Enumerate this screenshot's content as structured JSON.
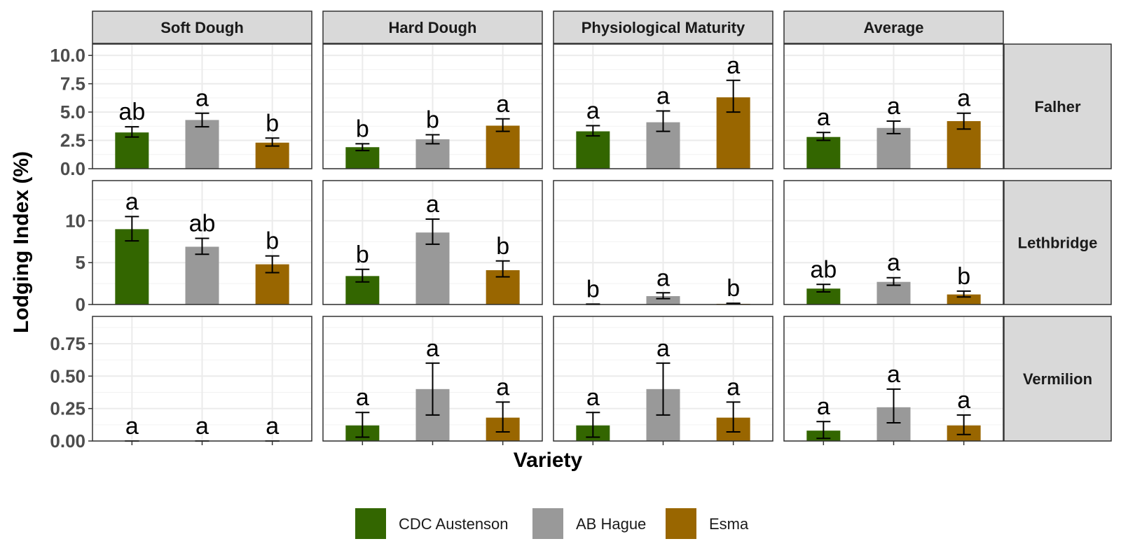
{
  "chart_data": {
    "type": "bar",
    "ylabel": "Lodging Index (%)",
    "xlabel": "Variety",
    "columns": [
      "Soft Dough",
      "Hard Dough",
      "Physiological Maturity",
      "Average"
    ],
    "rows": [
      {
        "name": "Falher",
        "ylim": [
          0,
          11
        ],
        "ticks": [
          0,
          2.5,
          5,
          7.5,
          10
        ],
        "tick_labels": [
          "0.0",
          "2.5",
          "5.0",
          "7.5",
          "10.0"
        ]
      },
      {
        "name": "Lethbridge",
        "ylim": [
          0,
          14.8
        ],
        "ticks": [
          0,
          5,
          10
        ],
        "tick_labels": [
          "0",
          "5",
          "10"
        ]
      },
      {
        "name": "Vermilion",
        "ylim": [
          0,
          0.96
        ],
        "ticks": [
          0,
          0.25,
          0.5,
          0.75
        ],
        "tick_labels": [
          "0.00",
          "0.25",
          "0.50",
          "0.75"
        ]
      }
    ],
    "series": [
      {
        "name": "CDC Austenson",
        "color": "#336600"
      },
      {
        "name": "AB Hague",
        "color": "#999999"
      },
      {
        "name": "Esma",
        "color": "#996600"
      }
    ],
    "panels": [
      {
        "row": 0,
        "col": 0,
        "bars": [
          {
            "value": 3.2,
            "low": 2.8,
            "high": 3.7,
            "letter": "ab"
          },
          {
            "value": 4.3,
            "low": 3.7,
            "high": 4.9,
            "letter": "a"
          },
          {
            "value": 2.3,
            "low": 2.0,
            "high": 2.7,
            "letter": "b"
          }
        ]
      },
      {
        "row": 0,
        "col": 1,
        "bars": [
          {
            "value": 1.9,
            "low": 1.6,
            "high": 2.2,
            "letter": "b"
          },
          {
            "value": 2.6,
            "low": 2.2,
            "high": 3.0,
            "letter": "b"
          },
          {
            "value": 3.8,
            "low": 3.3,
            "high": 4.4,
            "letter": "a"
          }
        ]
      },
      {
        "row": 0,
        "col": 2,
        "bars": [
          {
            "value": 3.3,
            "low": 2.9,
            "high": 3.8,
            "letter": "a"
          },
          {
            "value": 4.1,
            "low": 3.3,
            "high": 5.1,
            "letter": "a"
          },
          {
            "value": 6.3,
            "low": 5.0,
            "high": 7.8,
            "letter": "a"
          }
        ]
      },
      {
        "row": 0,
        "col": 3,
        "bars": [
          {
            "value": 2.8,
            "low": 2.5,
            "high": 3.2,
            "letter": "a"
          },
          {
            "value": 3.6,
            "low": 3.1,
            "high": 4.2,
            "letter": "a"
          },
          {
            "value": 4.2,
            "low": 3.5,
            "high": 4.9,
            "letter": "a"
          }
        ]
      },
      {
        "row": 1,
        "col": 0,
        "bars": [
          {
            "value": 9.0,
            "low": 7.6,
            "high": 10.5,
            "letter": "a"
          },
          {
            "value": 6.9,
            "low": 6.0,
            "high": 7.9,
            "letter": "ab"
          },
          {
            "value": 4.8,
            "low": 3.8,
            "high": 5.8,
            "letter": "b"
          }
        ]
      },
      {
        "row": 1,
        "col": 1,
        "bars": [
          {
            "value": 3.4,
            "low": 2.7,
            "high": 4.2,
            "letter": "b"
          },
          {
            "value": 8.6,
            "low": 7.2,
            "high": 10.2,
            "letter": "a"
          },
          {
            "value": 4.1,
            "low": 3.3,
            "high": 5.2,
            "letter": "b"
          }
        ]
      },
      {
        "row": 1,
        "col": 2,
        "bars": [
          {
            "value": 0.02,
            "low": 0.01,
            "high": 0.05,
            "letter": "b"
          },
          {
            "value": 1.0,
            "low": 0.7,
            "high": 1.4,
            "letter": "a"
          },
          {
            "value": 0.08,
            "low": 0.05,
            "high": 0.15,
            "letter": "b"
          }
        ]
      },
      {
        "row": 1,
        "col": 3,
        "bars": [
          {
            "value": 1.9,
            "low": 1.5,
            "high": 2.4,
            "letter": "ab"
          },
          {
            "value": 2.7,
            "low": 2.3,
            "high": 3.2,
            "letter": "a"
          },
          {
            "value": 1.2,
            "low": 0.9,
            "high": 1.6,
            "letter": "b"
          }
        ]
      },
      {
        "row": 2,
        "col": 0,
        "bars": [
          {
            "value": 0.0,
            "low": 0.0,
            "high": 0.0,
            "letter": "a"
          },
          {
            "value": 0.0,
            "low": 0.0,
            "high": 0.0,
            "letter": "a"
          },
          {
            "value": 0.0,
            "low": 0.0,
            "high": 0.0,
            "letter": "a"
          }
        ]
      },
      {
        "row": 2,
        "col": 1,
        "bars": [
          {
            "value": 0.12,
            "low": 0.03,
            "high": 0.22,
            "letter": "a"
          },
          {
            "value": 0.4,
            "low": 0.2,
            "high": 0.6,
            "letter": "a"
          },
          {
            "value": 0.18,
            "low": 0.07,
            "high": 0.3,
            "letter": "a"
          }
        ]
      },
      {
        "row": 2,
        "col": 2,
        "bars": [
          {
            "value": 0.12,
            "low": 0.03,
            "high": 0.22,
            "letter": "a"
          },
          {
            "value": 0.4,
            "low": 0.2,
            "high": 0.6,
            "letter": "a"
          },
          {
            "value": 0.18,
            "low": 0.07,
            "high": 0.3,
            "letter": "a"
          }
        ]
      },
      {
        "row": 2,
        "col": 3,
        "bars": [
          {
            "value": 0.08,
            "low": 0.02,
            "high": 0.15,
            "letter": "a"
          },
          {
            "value": 0.26,
            "low": 0.14,
            "high": 0.4,
            "letter": "a"
          },
          {
            "value": 0.12,
            "low": 0.05,
            "high": 0.2,
            "letter": "a"
          }
        ]
      }
    ],
    "legend": {
      "position": "bottom"
    },
    "grid": true
  }
}
